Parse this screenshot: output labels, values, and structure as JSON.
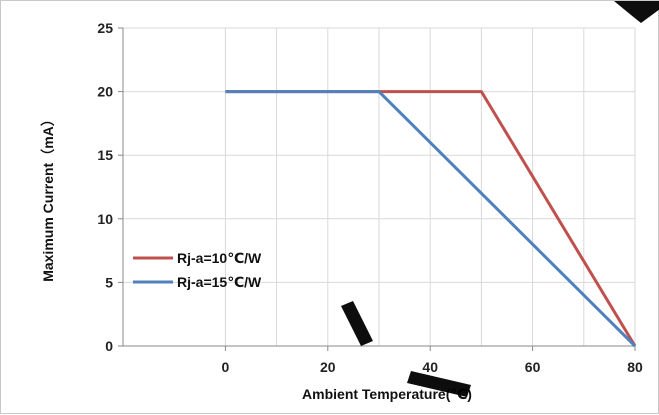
{
  "chart_data": {
    "type": "line",
    "xlabel": "Ambient Temperature(℃)",
    "ylabel": "Maximum Current（mA）",
    "xlim": [
      -20,
      80
    ],
    "ylim": [
      0,
      25
    ],
    "xticks": [
      "0",
      "20",
      "40",
      "60",
      "80"
    ],
    "yticks": [
      "0",
      "5",
      "10",
      "15",
      "20",
      "25"
    ],
    "grid": true,
    "legend_position": "left",
    "series": [
      {
        "name": "Rj-a=10℃/W",
        "color": "#c0504d",
        "x": [
          0,
          50,
          80
        ],
        "y": [
          20,
          20,
          0
        ]
      },
      {
        "name": "Rj-a=15℃/W",
        "color": "#4f81bd",
        "x": [
          0,
          30,
          80
        ],
        "y": [
          20,
          20,
          0
        ]
      }
    ]
  }
}
